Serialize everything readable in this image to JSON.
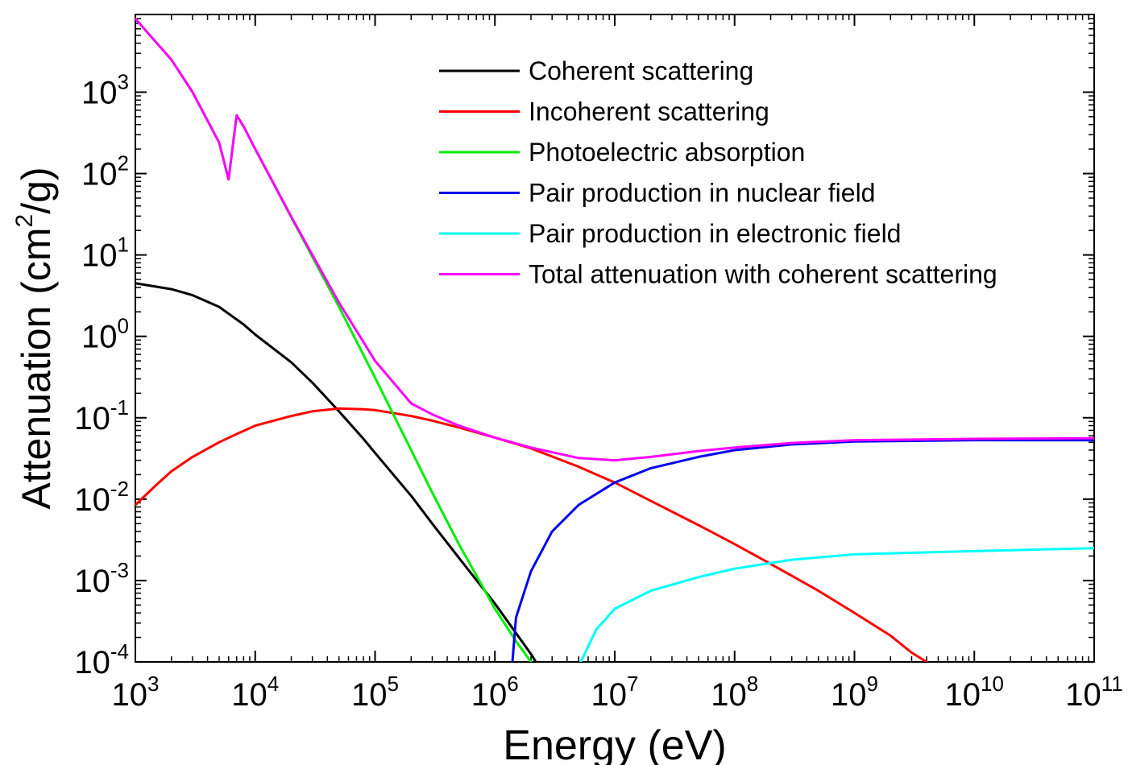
{
  "chart_data": {
    "type": "line",
    "title": "",
    "xlabel": "Energy (eV)",
    "ylabel": {
      "main": "Attenuation (cm",
      "sup": "2",
      "rest": "/g)"
    },
    "xscale": "log",
    "yscale": "log",
    "xlim": [
      1000,
      100000000000
    ],
    "ylim": [
      0.0001,
      9000
    ],
    "grid": false,
    "legend_position": "top-right",
    "x_ticks": [
      {
        "value": 1000,
        "base": "10",
        "exp": "3"
      },
      {
        "value": 10000,
        "base": "10",
        "exp": "4"
      },
      {
        "value": 100000,
        "base": "10",
        "exp": "5"
      },
      {
        "value": 1000000,
        "base": "10",
        "exp": "6"
      },
      {
        "value": 10000000,
        "base": "10",
        "exp": "7"
      },
      {
        "value": 100000000,
        "base": "10",
        "exp": "8"
      },
      {
        "value": 1000000000,
        "base": "10",
        "exp": "9"
      },
      {
        "value": 10000000000,
        "base": "10",
        "exp": "10"
      },
      {
        "value": 100000000000,
        "base": "10",
        "exp": "11"
      }
    ],
    "y_ticks": [
      {
        "value": 0.0001,
        "base": "10",
        "exp": "-4"
      },
      {
        "value": 0.001,
        "base": "10",
        "exp": "-3"
      },
      {
        "value": 0.01,
        "base": "10",
        "exp": "-2"
      },
      {
        "value": 0.1,
        "base": "10",
        "exp": "-1"
      },
      {
        "value": 1,
        "base": "10",
        "exp": "0"
      },
      {
        "value": 10,
        "base": "10",
        "exp": "1"
      },
      {
        "value": 100,
        "base": "10",
        "exp": "2"
      },
      {
        "value": 1000,
        "base": "10",
        "exp": "3"
      }
    ],
    "series": [
      {
        "name": "Coherent scattering",
        "color": "#000000",
        "points": [
          [
            1000,
            4.5
          ],
          [
            2000,
            3.8
          ],
          [
            3000,
            3.2
          ],
          [
            5000,
            2.3
          ],
          [
            8000,
            1.4
          ],
          [
            10000,
            1.05
          ],
          [
            20000,
            0.48
          ],
          [
            30000,
            0.27
          ],
          [
            50000,
            0.12
          ],
          [
            80000,
            0.055
          ],
          [
            100000,
            0.037
          ],
          [
            200000,
            0.011
          ],
          [
            300000,
            0.005
          ],
          [
            500000,
            0.0019
          ],
          [
            1000000,
            0.00052
          ],
          [
            2000000,
            0.000125
          ],
          [
            2200000,
            0.0001
          ]
        ]
      },
      {
        "name": "Incoherent scattering",
        "color": "#ff0000",
        "points": [
          [
            1000,
            0.0085
          ],
          [
            1500,
            0.015
          ],
          [
            2000,
            0.022
          ],
          [
            3000,
            0.033
          ],
          [
            5000,
            0.05
          ],
          [
            7000,
            0.063
          ],
          [
            10000,
            0.08
          ],
          [
            20000,
            0.105
          ],
          [
            30000,
            0.12
          ],
          [
            50000,
            0.13
          ],
          [
            80000,
            0.127
          ],
          [
            100000,
            0.124
          ],
          [
            200000,
            0.105
          ],
          [
            300000,
            0.092
          ],
          [
            500000,
            0.076
          ],
          [
            1000000,
            0.057
          ],
          [
            2000000,
            0.042
          ],
          [
            5000000,
            0.025
          ],
          [
            10000000,
            0.016
          ],
          [
            20000000,
            0.0095
          ],
          [
            50000000,
            0.0048
          ],
          [
            100000000,
            0.0028
          ],
          [
            200000000,
            0.0016
          ],
          [
            500000000,
            0.00075
          ],
          [
            1000000000,
            0.0004
          ],
          [
            2000000000,
            0.00021
          ],
          [
            3000000000,
            0.00013
          ],
          [
            4000000000,
            0.0001
          ]
        ]
      },
      {
        "name": "Photoelectric absorption",
        "color": "#00ee00",
        "points": [
          [
            1000,
            8000
          ],
          [
            2000,
            2500
          ],
          [
            3000,
            1000
          ],
          [
            5000,
            240
          ],
          [
            6000,
            85
          ],
          [
            7000,
            520
          ],
          [
            8000,
            380
          ],
          [
            10000,
            200
          ],
          [
            20000,
            29
          ],
          [
            30000,
            9.5
          ],
          [
            50000,
            2.3
          ],
          [
            100000,
            0.31
          ],
          [
            200000,
            0.04
          ],
          [
            300000,
            0.012
          ],
          [
            500000,
            0.0028
          ],
          [
            1000000,
            0.00045
          ],
          [
            1500000,
            0.00018
          ],
          [
            2000000,
            0.0001
          ]
        ]
      },
      {
        "name": "Pair production in nuclear field",
        "color": "#0000ee",
        "points": [
          [
            1400000,
            0.0001
          ],
          [
            1500000,
            0.00035
          ],
          [
            2000000,
            0.0013
          ],
          [
            3000000,
            0.004
          ],
          [
            5000000,
            0.0085
          ],
          [
            10000000,
            0.016
          ],
          [
            20000000,
            0.024
          ],
          [
            50000000,
            0.033
          ],
          [
            100000000,
            0.04
          ],
          [
            300000000,
            0.047
          ],
          [
            1000000000,
            0.051
          ],
          [
            10000000000,
            0.053
          ],
          [
            100000000000,
            0.053
          ]
        ]
      },
      {
        "name": "Pair production in electronic field",
        "color": "#00ffff",
        "points": [
          [
            5200000,
            0.0001
          ],
          [
            7000000,
            0.00025
          ],
          [
            10000000,
            0.00045
          ],
          [
            20000000,
            0.00075
          ],
          [
            50000000,
            0.0011
          ],
          [
            100000000,
            0.0014
          ],
          [
            300000000,
            0.0018
          ],
          [
            1000000000,
            0.0021
          ],
          [
            10000000000,
            0.0023
          ],
          [
            100000000000,
            0.0025
          ]
        ]
      },
      {
        "name": "Total attenuation with coherent scattering",
        "color": "#ff00ff",
        "points": [
          [
            1000,
            8000
          ],
          [
            2000,
            2500
          ],
          [
            3000,
            1000
          ],
          [
            5000,
            240
          ],
          [
            6000,
            85
          ],
          [
            7000,
            520
          ],
          [
            8000,
            380
          ],
          [
            10000,
            200
          ],
          [
            20000,
            29.5
          ],
          [
            30000,
            10
          ],
          [
            50000,
            2.6
          ],
          [
            100000,
            0.5
          ],
          [
            200000,
            0.15
          ],
          [
            300000,
            0.11
          ],
          [
            500000,
            0.08
          ],
          [
            1000000,
            0.057
          ],
          [
            2000000,
            0.043
          ],
          [
            5000000,
            0.032
          ],
          [
            10000000,
            0.03
          ],
          [
            20000000,
            0.033
          ],
          [
            50000000,
            0.039
          ],
          [
            100000000,
            0.043
          ],
          [
            300000000,
            0.049
          ],
          [
            1000000000,
            0.053
          ],
          [
            10000000000,
            0.055
          ],
          [
            100000000000,
            0.056
          ]
        ]
      }
    ]
  }
}
